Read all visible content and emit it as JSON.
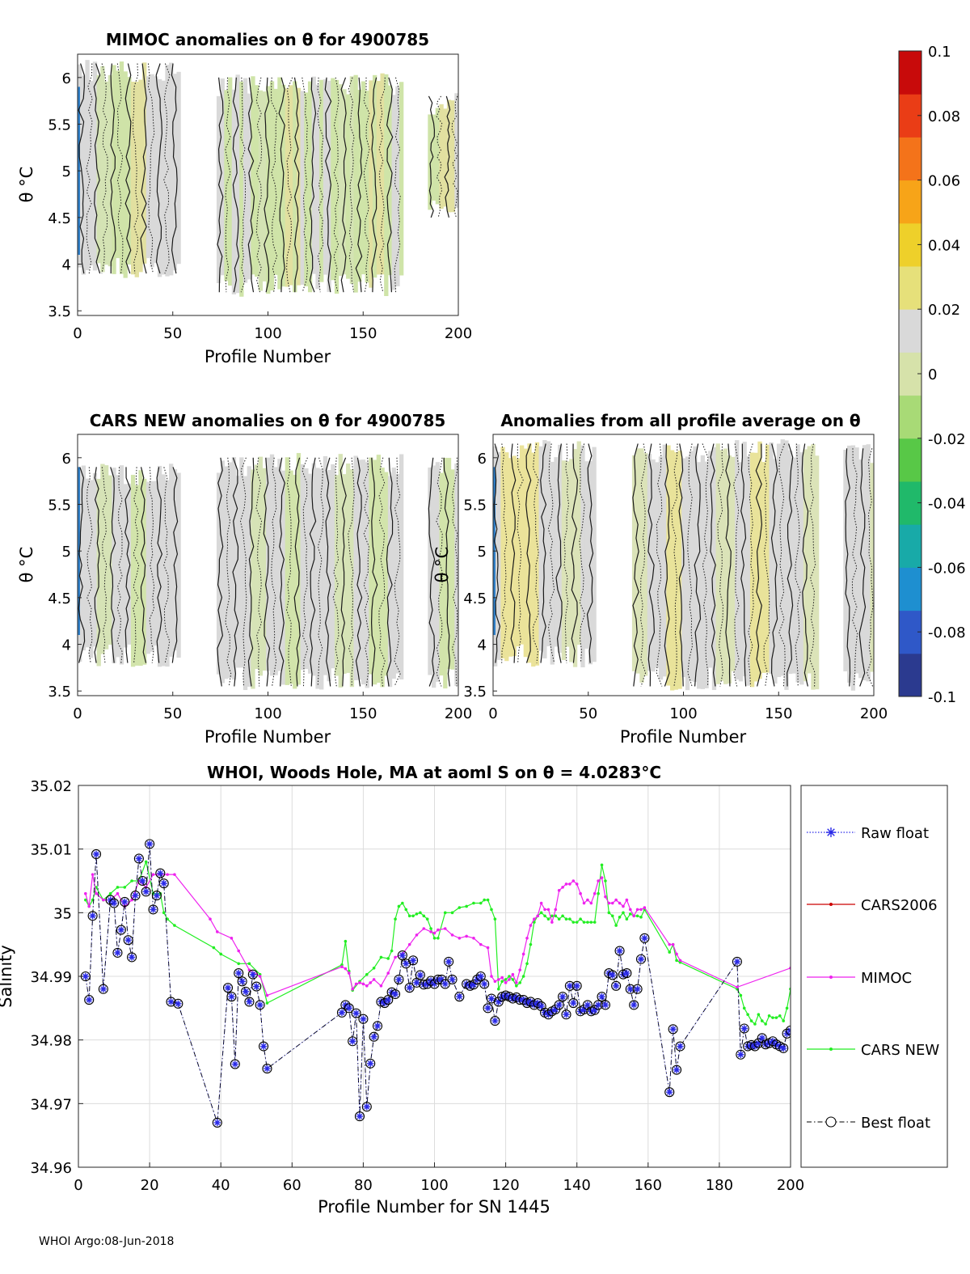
{
  "footer": "WHOI Argo:08-Jun-2018",
  "colors": {
    "raw": "#2a2ae8",
    "cars2006": "#cc0000",
    "mimoc": "#ee22ee",
    "carsnew": "#22ee22",
    "best": "#000000",
    "grid": "#dcdcdc",
    "neutral": "#d9d9d9"
  },
  "colorbar": {
    "min": -0.1,
    "max": 0.1,
    "tick_labels": [
      "0.1",
      "0.08",
      "0.06",
      "0.04",
      "0.02",
      "0",
      "-0.02",
      "-0.04",
      "-0.06",
      "-0.08",
      "-0.1"
    ],
    "colors": [
      "#2b3a8f",
      "#2f58c8",
      "#1e8fd0",
      "#18aaa8",
      "#20b96a",
      "#58c847",
      "#a8da76",
      "#d6e2aa",
      "#d9d9d9",
      "#e6e07a",
      "#eed02a",
      "#f7a418",
      "#f4731a",
      "#ea3d16",
      "#c80a0a"
    ]
  },
  "chart_data": [
    {
      "id": "mimoc",
      "type": "heatmap",
      "title": "MIMOC anomalies on θ  for 4900785",
      "xlabel": "Profile Number",
      "ylabel": "θ °C",
      "xlim": [
        0,
        200
      ],
      "ylim": [
        3.45,
        6.25
      ],
      "xticks": [
        0,
        50,
        100,
        150,
        200
      ],
      "yticks": [
        3.5,
        4,
        4.5,
        5,
        5.5,
        6
      ],
      "ytick_labels": [
        "3.5",
        "4",
        "4.5",
        "5",
        "5.5",
        "6"
      ],
      "segments": [
        {
          "x0": 0,
          "x1": 53,
          "ymin": 3.85,
          "ymax": 6.2
        },
        {
          "x0": 73,
          "x1": 170,
          "ymin": 3.65,
          "ymax": 6.05
        },
        {
          "x0": 184,
          "x1": 200,
          "ymin": 4.45,
          "ymax": 5.85
        }
      ]
    },
    {
      "id": "carsnew",
      "type": "heatmap",
      "title": "CARS NEW anomalies on θ for 4900785",
      "xlabel": "Profile Number",
      "ylabel": "θ °C",
      "xlim": [
        0,
        200
      ],
      "ylim": [
        3.45,
        6.25
      ],
      "xticks": [
        0,
        50,
        100,
        150,
        200
      ],
      "yticks": [
        3.5,
        4,
        4.5,
        5,
        5.5,
        6
      ],
      "ytick_labels": [
        "3.5",
        "4",
        "4.5",
        "5",
        "5.5",
        "6"
      ],
      "segments": [
        {
          "x0": 0,
          "x1": 53,
          "ymin": 3.75,
          "ymax": 5.95
        },
        {
          "x0": 73,
          "x1": 170,
          "ymin": 3.5,
          "ymax": 6.05
        },
        {
          "x0": 184,
          "x1": 200,
          "ymin": 3.5,
          "ymax": 6.05
        }
      ]
    },
    {
      "id": "allavg",
      "type": "heatmap",
      "title": "Anomalies from all profile average on θ",
      "xlabel": "Profile Number",
      "ylabel": "θ °C",
      "xlim": [
        0,
        200
      ],
      "ylim": [
        3.45,
        6.25
      ],
      "xticks": [
        0,
        50,
        100,
        150,
        200
      ],
      "yticks": [
        3.5,
        4,
        4.5,
        5,
        5.5,
        6
      ],
      "ytick_labels": [
        "3.5",
        "4",
        "4.5",
        "5",
        "5.5",
        "6"
      ],
      "segments": [
        {
          "x0": 0,
          "x1": 53,
          "ymin": 3.75,
          "ymax": 6.2
        },
        {
          "x0": 73,
          "x1": 170,
          "ymin": 3.5,
          "ymax": 6.2
        },
        {
          "x0": 184,
          "x1": 200,
          "ymin": 3.5,
          "ymax": 6.15
        }
      ]
    },
    {
      "id": "salinity",
      "type": "line",
      "title": "WHOI, Woods Hole, MA at aoml S on θ = 4.0283°C",
      "xlabel": "Profile Number for SN 1445",
      "ylabel": "Salinity",
      "xlim": [
        0,
        200
      ],
      "ylim": [
        34.96,
        35.02
      ],
      "xticks": [
        0,
        20,
        40,
        60,
        80,
        100,
        120,
        140,
        160,
        180,
        200
      ],
      "yticks": [
        34.96,
        34.97,
        34.98,
        34.99,
        35,
        35.01,
        35.02
      ],
      "ytick_labels": [
        "34.96",
        "34.97",
        "34.98",
        "34.99",
        "35",
        "35.01",
        "35.02"
      ],
      "legend_position": "outside-right",
      "legend": [
        "Raw float",
        "CARS2006",
        "MIMOC",
        "CARS NEW",
        "Best float"
      ],
      "series": [
        {
          "name": "Best float",
          "x": [
            2,
            3,
            4,
            5,
            7,
            9,
            10,
            11,
            12,
            13,
            14,
            15,
            16,
            17,
            18,
            19,
            20,
            21,
            22,
            23,
            24,
            26,
            28,
            39,
            42,
            43,
            44,
            45,
            46,
            47,
            48,
            49,
            50,
            51,
            52,
            53,
            74,
            75,
            76,
            77,
            78,
            79,
            80,
            81,
            82,
            83,
            84,
            85,
            86,
            87,
            88,
            89,
            90,
            91,
            92,
            93,
            94,
            95,
            96,
            97,
            98,
            99,
            100,
            101,
            102,
            103,
            104,
            105,
            107,
            109,
            110,
            111,
            112,
            113,
            114,
            115,
            116,
            117,
            118,
            119,
            120,
            121,
            122,
            123,
            124,
            125,
            126,
            127,
            128,
            129,
            130,
            131,
            132,
            133,
            134,
            135,
            136,
            137,
            138,
            139,
            140,
            141,
            142,
            143,
            144,
            145,
            146,
            147,
            148,
            149,
            150,
            151,
            152,
            153,
            154,
            155,
            156,
            157,
            158,
            159,
            166,
            167,
            168,
            169,
            185,
            186,
            187,
            188,
            189,
            190,
            191,
            192,
            193,
            194,
            195,
            196,
            197,
            198,
            199,
            200
          ],
          "y": [
            34.99,
            34.9863,
            34.9995,
            35.0092,
            34.988,
            35.002,
            35.0015,
            34.9937,
            34.9973,
            35.0017,
            34.9957,
            34.993,
            35.0027,
            35.0085,
            35.005,
            35.0033,
            35.0108,
            35.0005,
            35.0027,
            35.0062,
            35.0046,
            34.986,
            34.9857,
            34.967,
            34.9882,
            34.9868,
            34.9762,
            34.9905,
            34.9892,
            34.9876,
            34.986,
            34.9903,
            34.9884,
            34.9855,
            34.979,
            34.9755,
            34.9843,
            34.9855,
            34.985,
            34.9798,
            34.9842,
            34.968,
            34.9833,
            34.9695,
            34.9763,
            34.9805,
            34.9822,
            34.986,
            34.9858,
            34.9863,
            34.9875,
            34.9872,
            34.9895,
            34.9933,
            34.992,
            34.9882,
            34.9925,
            34.989,
            34.9902,
            34.9887,
            34.9888,
            34.9893,
            34.9888,
            34.9895,
            34.9895,
            34.9888,
            34.9923,
            34.9895,
            34.9868,
            34.9888,
            34.9885,
            34.9887,
            34.9895,
            34.99,
            34.9888,
            34.985,
            34.9865,
            34.983,
            34.986,
            34.9868,
            34.987,
            34.9868,
            34.9865,
            34.9867,
            34.9863,
            34.9863,
            34.9858,
            34.986,
            34.9855,
            34.9858,
            34.9853,
            34.9843,
            34.984,
            34.9845,
            34.9848,
            34.9855,
            34.9868,
            34.984,
            34.9885,
            34.9858,
            34.9885,
            34.9845,
            34.9848,
            34.9855,
            34.9845,
            34.9847,
            34.9855,
            34.9868,
            34.9855,
            34.9905,
            34.9902,
            34.9885,
            34.994,
            34.9903,
            34.9905,
            34.988,
            34.9855,
            34.988,
            34.9927,
            34.996,
            34.9718,
            34.9817,
            34.9753,
            34.979,
            34.9923,
            34.9777,
            34.9818,
            34.979,
            34.9792,
            34.979,
            34.9795,
            34.9803,
            34.9793,
            34.9795,
            34.9798,
            34.9793,
            34.979,
            34.9787,
            34.981,
            34.9815
          ]
        },
        {
          "name": "MIMOC",
          "x": [
            2,
            3,
            4,
            5,
            7,
            9,
            11,
            13,
            15,
            17,
            19,
            21,
            23,
            25,
            27,
            37,
            39,
            43,
            45,
            48,
            51,
            53,
            74,
            75,
            76,
            77,
            78,
            79,
            80,
            81,
            82,
            83,
            85,
            87,
            89,
            91,
            93,
            95,
            97,
            99,
            100,
            101,
            103,
            105,
            107,
            109,
            111,
            113,
            115,
            116,
            117,
            118,
            119,
            120,
            121,
            122,
            123,
            124,
            125,
            126,
            127,
            128,
            129,
            130,
            131,
            132,
            133,
            134,
            135,
            136,
            137,
            138,
            139,
            140,
            141,
            142,
            143,
            144,
            145,
            146,
            147,
            148,
            149,
            150,
            151,
            152,
            153,
            154,
            155,
            156,
            157,
            158,
            159,
            166,
            167,
            168,
            169,
            185,
            200
          ],
          "y": [
            35.003,
            35.001,
            35.006,
            35.003,
            35.002,
            35.002,
            35.003,
            35.001,
            35.002,
            35.005,
            35.004,
            35.006,
            35.006,
            35.006,
            35.006,
            34.999,
            34.997,
            34.996,
            34.994,
            34.991,
            34.99,
            34.987,
            34.9915,
            34.9912,
            34.9905,
            34.988,
            34.9888,
            34.989,
            34.9888,
            34.9885,
            34.989,
            34.9895,
            34.9885,
            34.9905,
            34.993,
            34.9935,
            34.995,
            34.9965,
            34.9975,
            34.997,
            34.9968,
            34.9973,
            34.9975,
            34.9965,
            34.996,
            34.9963,
            34.996,
            34.995,
            34.9945,
            34.99,
            34.9892,
            34.9895,
            34.9898,
            34.989,
            34.9895,
            34.9903,
            34.989,
            34.991,
            34.9935,
            34.996,
            34.998,
            34.999,
            34.9995,
            35.0015,
            35.0005,
            35.0005,
            34.9985,
            35.0005,
            35.0035,
            35.004,
            35.0045,
            35.0045,
            35.005,
            35.0045,
            35.003,
            35.0015,
            35.002,
            35.0015,
            35.003,
            35.005,
            35.0055,
            35.0025,
            35.0015,
            35.0015,
            35.002,
            35.0015,
            35.001,
            35.002,
            35.0005,
            34.9995,
            35.0005,
            35.0005,
            35.0008,
            34.995,
            34.995,
            34.9935,
            34.9925,
            34.9883,
            34.9913
          ]
        },
        {
          "name": "CARS NEW",
          "x": [
            2,
            3,
            4,
            5,
            7,
            9,
            11,
            13,
            15,
            17,
            19,
            21,
            23,
            24,
            25,
            27,
            38,
            40,
            45,
            48,
            51,
            53,
            74,
            75,
            76,
            77,
            79,
            81,
            83,
            85,
            87,
            88,
            89,
            90,
            91,
            92,
            93,
            94,
            95,
            96,
            97,
            98,
            99,
            100,
            101,
            103,
            105,
            107,
            109,
            111,
            113,
            114,
            115,
            116,
            117,
            118,
            119,
            120,
            121,
            122,
            123,
            124,
            125,
            126,
            127,
            128,
            129,
            130,
            131,
            132,
            133,
            134,
            135,
            136,
            137,
            138,
            139,
            140,
            141,
            142,
            143,
            144,
            145,
            146,
            147,
            148,
            149,
            150,
            151,
            152,
            153,
            154,
            155,
            156,
            157,
            158,
            159,
            166,
            167,
            168,
            169,
            185,
            186,
            187,
            188,
            189,
            190,
            191,
            192,
            193,
            194,
            195,
            196,
            197,
            198,
            199,
            200
          ],
          "y": [
            35.002,
            35.001,
            35.002,
            35.004,
            35.002,
            35.003,
            35.004,
            35.004,
            35.005,
            35.005,
            35.008,
            35.003,
            35.003,
            35.0,
            34.999,
            34.998,
            34.9945,
            34.9935,
            34.992,
            34.992,
            34.9903,
            34.9858,
            34.9918,
            34.9955,
            34.9908,
            34.9878,
            34.9892,
            34.9903,
            34.9913,
            34.993,
            34.9928,
            34.994,
            34.999,
            35.001,
            35.0015,
            35.0005,
            34.9995,
            34.9995,
            34.9998,
            35.0,
            34.9995,
            34.999,
            34.9975,
            34.996,
            34.996,
            35.0,
            35.0,
            35.0008,
            35.001,
            35.0015,
            35.0015,
            35.002,
            35.002,
            35.0005,
            34.999,
            34.988,
            34.9892,
            34.9895,
            34.99,
            34.9895,
            34.9885,
            34.989,
            34.99,
            34.992,
            34.995,
            34.9985,
            34.9995,
            35.0,
            34.9995,
            34.999,
            34.9995,
            34.9995,
            34.999,
            34.9995,
            34.999,
            34.999,
            34.9985,
            34.9985,
            34.999,
            34.9985,
            34.9985,
            34.9985,
            34.9985,
            35.003,
            35.0075,
            35.005,
            35.0,
            34.9995,
            34.998,
            34.9993,
            35.0,
            34.999,
            34.9998,
            34.9995,
            34.9995,
            34.9993,
            35.0005,
            34.9938,
            34.995,
            34.9925,
            34.9922,
            34.988,
            34.987,
            34.985,
            34.984,
            34.983,
            34.9825,
            34.984,
            34.983,
            34.9825,
            34.9838,
            34.9835,
            34.9835,
            34.9838,
            34.983,
            34.985,
            34.988
          ]
        },
        {
          "name": "Raw float",
          "x": [],
          "y": []
        },
        {
          "name": "CARS2006",
          "x": [],
          "y": []
        }
      ]
    }
  ]
}
